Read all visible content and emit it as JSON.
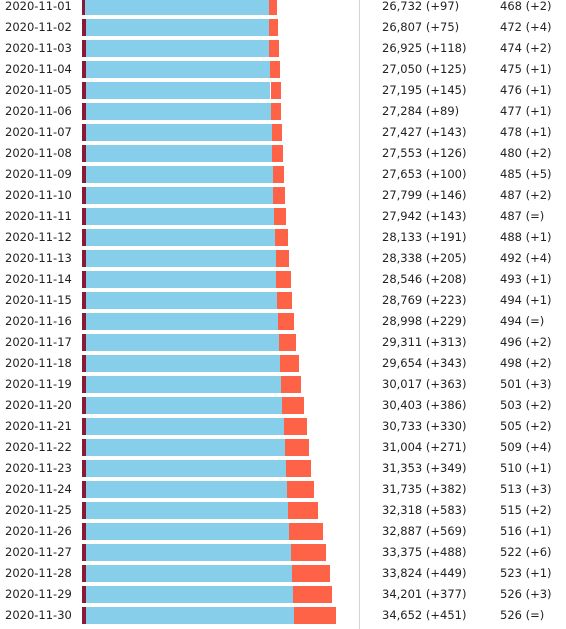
{
  "colors": {
    "deaths": "#8b1a3a",
    "recovered": "#87ceeb",
    "active": "#ff6347"
  },
  "chart_data": {
    "type": "bar",
    "orientation": "horizontal",
    "stacked": true,
    "categories": [
      "2020-11-01",
      "2020-11-02",
      "2020-11-03",
      "2020-11-04",
      "2020-11-05",
      "2020-11-06",
      "2020-11-07",
      "2020-11-08",
      "2020-11-09",
      "2020-11-10",
      "2020-11-11",
      "2020-11-12",
      "2020-11-13",
      "2020-11-14",
      "2020-11-15",
      "2020-11-16",
      "2020-11-17",
      "2020-11-18",
      "2020-11-19",
      "2020-11-20",
      "2020-11-21",
      "2020-11-22",
      "2020-11-23",
      "2020-11-24",
      "2020-11-25",
      "2020-11-26",
      "2020-11-27",
      "2020-11-28",
      "2020-11-29",
      "2020-11-30"
    ],
    "cases": [
      26732,
      26807,
      26925,
      27050,
      27195,
      27284,
      27427,
      27553,
      27653,
      27799,
      27942,
      28133,
      28338,
      28546,
      28769,
      28998,
      29311,
      29654,
      30017,
      30403,
      30733,
      31004,
      31353,
      31735,
      32318,
      32887,
      33375,
      33824,
      34201,
      34652
    ],
    "case_labels": [
      "26,732 (+97)",
      "26,807 (+75)",
      "26,925 (+118)",
      "27,050 (+125)",
      "27,195 (+145)",
      "27,284 (+89)",
      "27,427 (+143)",
      "27,553 (+126)",
      "27,653 (+100)",
      "27,799 (+146)",
      "27,942 (+143)",
      "28,133 (+191)",
      "28,338 (+205)",
      "28,546 (+208)",
      "28,769 (+223)",
      "28,998 (+229)",
      "29,311 (+313)",
      "29,654 (+343)",
      "30,017 (+363)",
      "30,403 (+386)",
      "30,733 (+330)",
      "31,004 (+271)",
      "31,353 (+349)",
      "31,735 (+382)",
      "32,318 (+583)",
      "32,887 (+569)",
      "33,375 (+488)",
      "33,824 (+449)",
      "34,201 (+377)",
      "34,652 (+451)"
    ],
    "deaths": [
      468,
      472,
      474,
      475,
      476,
      477,
      478,
      480,
      485,
      487,
      487,
      488,
      492,
      493,
      494,
      494,
      496,
      498,
      501,
      503,
      505,
      509,
      510,
      513,
      515,
      516,
      522,
      523,
      526,
      526
    ],
    "death_labels": [
      "468 (+2)",
      "472 (+4)",
      "474 (+2)",
      "475 (+1)",
      "476 (+1)",
      "477 (+1)",
      "478 (+1)",
      "480 (+2)",
      "485 (+5)",
      "487 (+2)",
      "487 (=)",
      "488 (+1)",
      "492 (+4)",
      "493 (+1)",
      "494 (+1)",
      "494 (=)",
      "496 (+2)",
      "498 (+2)",
      "501 (+3)",
      "503 (+2)",
      "505 (+2)",
      "509 (+4)",
      "510 (+1)",
      "513 (+3)",
      "515 (+2)",
      "516 (+1)",
      "522 (+6)",
      "523 (+1)",
      "526 (+3)",
      "526 (=)"
    ],
    "recovered": [
      25100,
      25150,
      25200,
      25260,
      25350,
      25420,
      25500,
      25560,
      25650,
      25750,
      25850,
      25950,
      26050,
      26150,
      26250,
      26350,
      26500,
      26650,
      26800,
      26950,
      27100,
      27250,
      27400,
      27550,
      27700,
      27850,
      28050,
      28250,
      28400,
      28550
    ],
    "active_estimated": [
      1164,
      1185,
      1251,
      1315,
      1369,
      1387,
      1449,
      1513,
      1518,
      1562,
      1605,
      1695,
      1796,
      1903,
      2025,
      2154,
      2315,
      2506,
      2716,
      2950,
      3128,
      3245,
      3443,
      3672,
      4103,
      4521,
      4803,
      5051,
      5275,
      5576
    ],
    "xlim": [
      0,
      39000
    ]
  }
}
